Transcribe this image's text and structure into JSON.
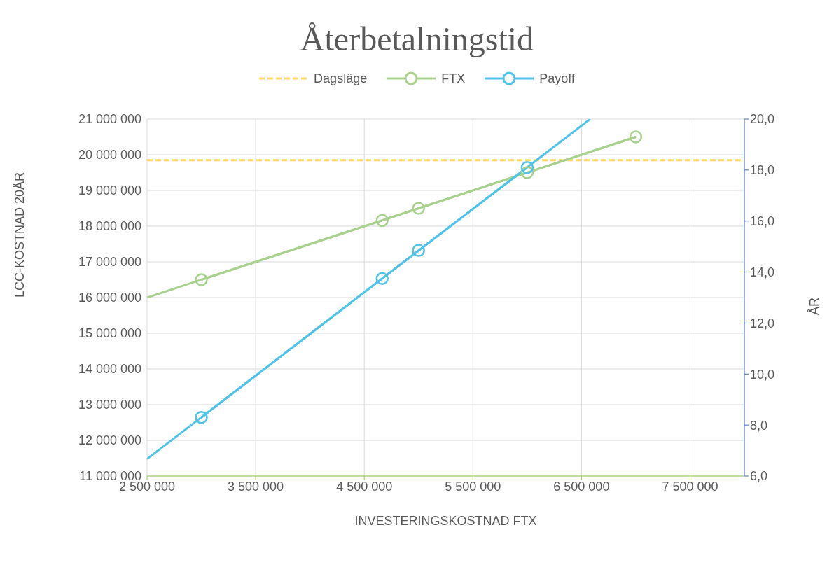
{
  "chart_data": {
    "type": "line",
    "title": "Återbetalningstid",
    "xlabel": "INVESTERINGSKOSTNAD FTX",
    "ylabel": "LCC-KOSTNAD 20ÅR",
    "y2label": "ÅR",
    "xlim": [
      2500000,
      8000000
    ],
    "xticks": [
      {
        "value": 2500000,
        "label": "2 500 000"
      },
      {
        "value": 3500000,
        "label": "3 500 000"
      },
      {
        "value": 4500000,
        "label": "4 500 000"
      },
      {
        "value": 5500000,
        "label": "5 500 000"
      },
      {
        "value": 6500000,
        "label": "6 500 000"
      },
      {
        "value": 7500000,
        "label": "7 500 000"
      }
    ],
    "ylim": [
      11000000,
      21000000
    ],
    "yticks": [
      {
        "value": 11000000,
        "label": "11 000 000"
      },
      {
        "value": 12000000,
        "label": "12 000 000"
      },
      {
        "value": 13000000,
        "label": "13 000 000"
      },
      {
        "value": 14000000,
        "label": "14 000 000"
      },
      {
        "value": 15000000,
        "label": "15 000 000"
      },
      {
        "value": 16000000,
        "label": "16 000 000"
      },
      {
        "value": 17000000,
        "label": "17 000 000"
      },
      {
        "value": 18000000,
        "label": "18 000 000"
      },
      {
        "value": 19000000,
        "label": "19 000 000"
      },
      {
        "value": 20000000,
        "label": "20 000 000"
      },
      {
        "value": 21000000,
        "label": "21 000 000"
      }
    ],
    "y2lim": [
      6,
      20
    ],
    "y2ticks": [
      {
        "value": 6,
        "label": "6,0"
      },
      {
        "value": 8,
        "label": "8,0"
      },
      {
        "value": 10,
        "label": "10,0"
      },
      {
        "value": 12,
        "label": "12,0"
      },
      {
        "value": 14,
        "label": "14,0"
      },
      {
        "value": 16,
        "label": "16,0"
      },
      {
        "value": 18,
        "label": "18,0"
      },
      {
        "value": 20,
        "label": "20,0"
      }
    ],
    "grid": true,
    "legend": "top",
    "marker": "circle",
    "line_style": "solid",
    "series": [
      {
        "name": "Dagsläge",
        "color": "#ffd966",
        "line_style": "dashed",
        "marker": "none",
        "x": [
          2500000,
          8000000
        ],
        "values": [
          19850000,
          19850000
        ]
      },
      {
        "name": "FTX",
        "color": "#a9d18e",
        "x": [
          3000000,
          4665000,
          5000000,
          6000000,
          7000000
        ],
        "values": [
          16500000,
          18160000,
          18500000,
          19500000,
          20500000
        ]
      },
      {
        "color": "#a9d18e",
        "marker": "none",
        "x": [
          2500000,
          7000000
        ],
        "values": [
          16000000,
          20500000
        ]
      },
      {
        "name": "Payoff",
        "axis": "y2",
        "color": "#4fc3e8",
        "x": [
          3000000,
          4665000,
          5000000,
          6000000
        ],
        "values": [
          8.3,
          13.75,
          14.85,
          18.1
        ]
      },
      {
        "axis": "y2",
        "color": "#4fc3e8",
        "marker": "none",
        "x": [
          2500000,
          6580000
        ],
        "values": [
          6.67,
          20
        ]
      }
    ]
  }
}
